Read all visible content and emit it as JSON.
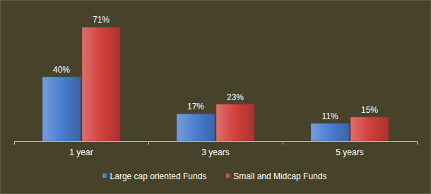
{
  "chart_data": {
    "type": "bar",
    "categories": [
      "1 year",
      "3 years",
      "5 years"
    ],
    "series": [
      {
        "name": "Large cap oriented Funds",
        "color": "#4a7ed0",
        "values": [
          40,
          17,
          11
        ],
        "value_labels": [
          "40%",
          "17%",
          "11%"
        ]
      },
      {
        "name": "Small and Midcap Funds",
        "color": "#d2403c",
        "values": [
          71,
          23,
          15
        ],
        "value_labels": [
          "71%",
          "23%",
          "15%"
        ]
      }
    ],
    "ylim": [
      0,
      80
    ],
    "grid": false,
    "data_labels": true,
    "tick_labels": "x",
    "legend": "bottom"
  }
}
